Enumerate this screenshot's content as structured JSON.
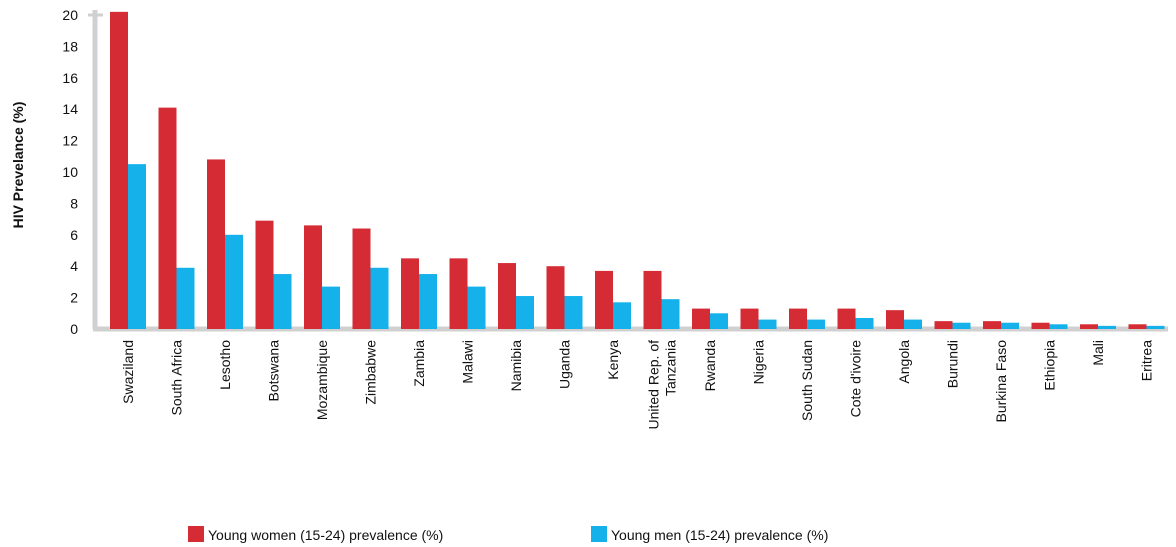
{
  "chart_data": {
    "type": "bar",
    "ylabel": "HIV Prevelance (%)",
    "ylim": [
      0,
      20
    ],
    "yticks": [
      0,
      2,
      4,
      6,
      8,
      10,
      12,
      14,
      16,
      18,
      20
    ],
    "grid": false,
    "legend_position": "bottom",
    "categories": [
      "Swaziland",
      "South Africa",
      "Lesotho",
      "Botswana",
      "Mozambique",
      "Zimbabwe",
      "Zambia",
      "Malawi",
      "Namibia",
      "Uganda",
      "Kenya",
      "United Rep. of Tanzania",
      "Rwanda",
      "Nigeria",
      "South Sudan",
      "Cote d'ivoire",
      "Angola",
      "Burundi",
      "Burkina Faso",
      "Ethiopia",
      "Mali",
      "Eritrea"
    ],
    "series": [
      {
        "name": "Young women (15-24) prevalence (%)",
        "color": "#d52b35",
        "values": [
          20.2,
          14.1,
          10.8,
          6.9,
          6.6,
          6.4,
          4.5,
          4.5,
          4.2,
          4.0,
          3.7,
          3.7,
          1.3,
          1.3,
          1.3,
          1.3,
          1.2,
          0.5,
          0.5,
          0.4,
          0.3,
          0.3
        ]
      },
      {
        "name": "Young men (15-24) prevalence (%)",
        "color": "#14b1ea",
        "values": [
          10.5,
          3.9,
          6.0,
          3.5,
          2.7,
          3.9,
          3.5,
          2.7,
          2.1,
          2.1,
          1.7,
          1.9,
          1.0,
          0.6,
          0.6,
          0.7,
          0.6,
          0.4,
          0.4,
          0.3,
          0.2,
          0.2
        ]
      }
    ]
  }
}
